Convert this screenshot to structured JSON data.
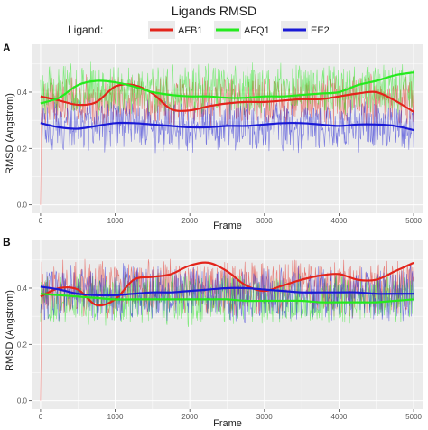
{
  "title": "Ligands RMSD",
  "legend": {
    "title": "Ligand:",
    "placement": "top",
    "entries": [
      "AFB1",
      "AFQ1",
      "EE2"
    ]
  },
  "colors": {
    "AFB1": "#e3241b",
    "AFQ1": "#25ea1e",
    "EE2": "#1a1ad6",
    "panel_bg": "#ebebeb",
    "grid": "#ffffff"
  },
  "chart_data": [
    {
      "type": "line",
      "panel": "A",
      "title": "Ligands RMSD",
      "xlabel": "Frame",
      "ylabel": "RMSD (Angstrom)",
      "xlim": [
        -120,
        5120
      ],
      "ylim": [
        -0.03,
        0.57
      ],
      "xticks": [
        0,
        1000,
        2000,
        3000,
        4000,
        5000
      ],
      "yticks": [
        0.0,
        0.2,
        0.4
      ],
      "grid": true,
      "raw_series": [
        {
          "name": "AFB1",
          "mean": 0.37,
          "spread": 0.08
        },
        {
          "name": "AFQ1",
          "mean": 0.41,
          "spread": 0.08
        },
        {
          "name": "EE2",
          "mean": 0.28,
          "spread": 0.08
        }
      ],
      "series": [
        {
          "name": "AFB1",
          "x": [
            0,
            250,
            500,
            750,
            1000,
            1250,
            1500,
            1750,
            2000,
            2250,
            2500,
            2750,
            3000,
            3250,
            3500,
            3750,
            4000,
            4250,
            4500,
            4750,
            5000
          ],
          "values": [
            0.385,
            0.37,
            0.355,
            0.365,
            0.42,
            0.425,
            0.395,
            0.34,
            0.335,
            0.35,
            0.36,
            0.365,
            0.365,
            0.37,
            0.375,
            0.375,
            0.385,
            0.395,
            0.4,
            0.37,
            0.33
          ]
        },
        {
          "name": "AFQ1",
          "x": [
            0,
            250,
            500,
            750,
            1000,
            1250,
            1500,
            1750,
            2000,
            2250,
            2500,
            2750,
            3000,
            3250,
            3500,
            3750,
            4000,
            4250,
            4500,
            4750,
            5000
          ],
          "values": [
            0.36,
            0.38,
            0.425,
            0.44,
            0.435,
            0.42,
            0.4,
            0.39,
            0.385,
            0.385,
            0.38,
            0.38,
            0.385,
            0.385,
            0.39,
            0.395,
            0.4,
            0.425,
            0.44,
            0.46,
            0.47
          ]
        },
        {
          "name": "EE2",
          "x": [
            0,
            250,
            500,
            750,
            1000,
            1250,
            1500,
            1750,
            2000,
            2250,
            2500,
            2750,
            3000,
            3250,
            3500,
            3750,
            4000,
            4250,
            4500,
            4750,
            5000
          ],
          "values": [
            0.29,
            0.275,
            0.27,
            0.28,
            0.29,
            0.29,
            0.285,
            0.28,
            0.275,
            0.275,
            0.28,
            0.28,
            0.285,
            0.29,
            0.29,
            0.285,
            0.28,
            0.285,
            0.285,
            0.28,
            0.265
          ]
        }
      ]
    },
    {
      "type": "line",
      "panel": "B",
      "xlabel": "Frame",
      "ylabel": "RMSD (Angstrom)",
      "xlim": [
        -120,
        5120
      ],
      "ylim": [
        -0.03,
        0.57
      ],
      "xticks": [
        0,
        1000,
        2000,
        3000,
        4000,
        5000
      ],
      "yticks": [
        0.0,
        0.2,
        0.4
      ],
      "grid": true,
      "raw_series": [
        {
          "name": "AFB1",
          "mean": 0.4,
          "spread": 0.09
        },
        {
          "name": "AFQ1",
          "mean": 0.36,
          "spread": 0.08
        },
        {
          "name": "EE2",
          "mean": 0.38,
          "spread": 0.09
        }
      ],
      "series": [
        {
          "name": "AFB1",
          "x": [
            0,
            250,
            500,
            750,
            1000,
            1250,
            1500,
            1750,
            2000,
            2250,
            2500,
            2750,
            3000,
            3250,
            3500,
            3750,
            4000,
            4250,
            4500,
            4750,
            5000
          ],
          "values": [
            0.37,
            0.4,
            0.395,
            0.34,
            0.36,
            0.43,
            0.44,
            0.45,
            0.48,
            0.49,
            0.46,
            0.41,
            0.39,
            0.41,
            0.43,
            0.445,
            0.45,
            0.43,
            0.43,
            0.46,
            0.49
          ]
        },
        {
          "name": "AFQ1",
          "x": [
            0,
            250,
            500,
            750,
            1000,
            1250,
            1500,
            1750,
            2000,
            2250,
            2500,
            2750,
            3000,
            3250,
            3500,
            3750,
            4000,
            4250,
            4500,
            4750,
            5000
          ],
          "values": [
            0.38,
            0.375,
            0.37,
            0.365,
            0.36,
            0.36,
            0.36,
            0.36,
            0.36,
            0.36,
            0.36,
            0.355,
            0.355,
            0.355,
            0.355,
            0.35,
            0.35,
            0.35,
            0.35,
            0.355,
            0.36
          ]
        },
        {
          "name": "EE2",
          "x": [
            0,
            250,
            500,
            750,
            1000,
            1250,
            1500,
            1750,
            2000,
            2250,
            2500,
            2750,
            3000,
            3250,
            3500,
            3750,
            4000,
            4250,
            4500,
            4750,
            5000
          ],
          "values": [
            0.405,
            0.395,
            0.38,
            0.375,
            0.375,
            0.38,
            0.385,
            0.385,
            0.39,
            0.395,
            0.4,
            0.4,
            0.395,
            0.39,
            0.385,
            0.385,
            0.385,
            0.385,
            0.38,
            0.38,
            0.38
          ]
        }
      ]
    }
  ]
}
